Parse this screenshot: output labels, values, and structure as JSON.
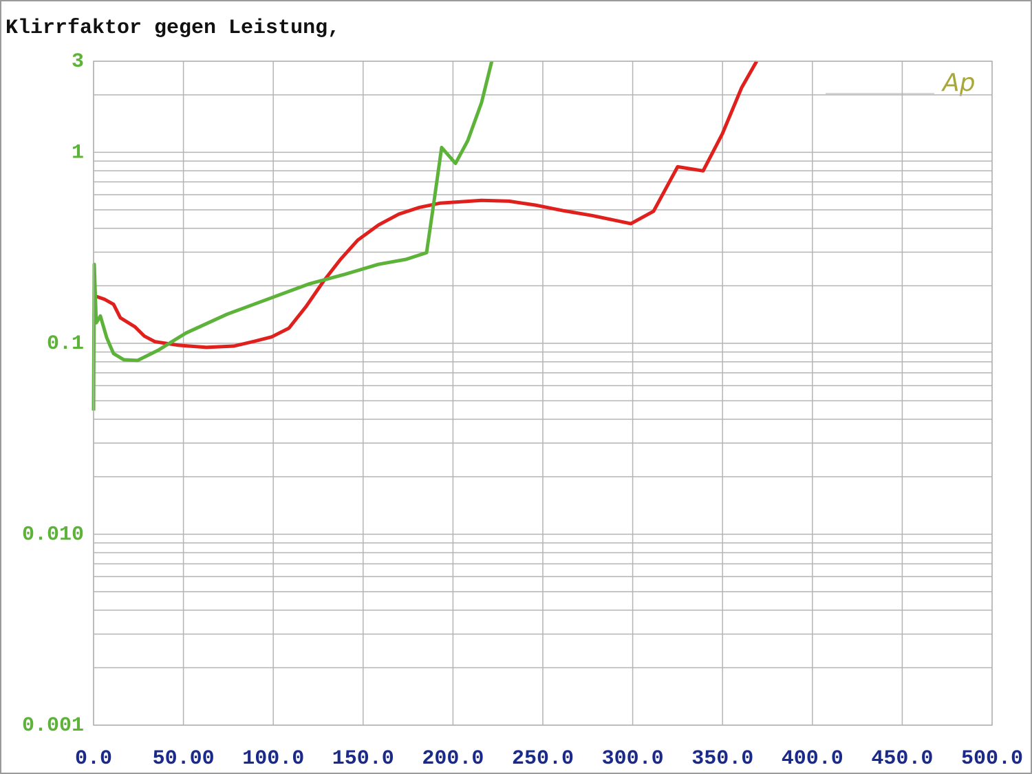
{
  "chart_data": {
    "type": "line",
    "title": "Klirrfaktor gegen Leistung,",
    "logo": "Ap",
    "y_scale": "log",
    "grid": true,
    "minor_grid": true,
    "xlim": [
      0,
      500
    ],
    "ylim": [
      0.001,
      3
    ],
    "xticks": [
      {
        "value": 0,
        "label": "0.0"
      },
      {
        "value": 50,
        "label": "50.00"
      },
      {
        "value": 100,
        "label": "100.0"
      },
      {
        "value": 150,
        "label": "150.0"
      },
      {
        "value": 200,
        "label": "200.0"
      },
      {
        "value": 250,
        "label": "250.0"
      },
      {
        "value": 300,
        "label": "300.0"
      },
      {
        "value": 350,
        "label": "350.0"
      },
      {
        "value": 400,
        "label": "400.0"
      },
      {
        "value": 450,
        "label": "450.0"
      },
      {
        "value": 500,
        "label": "500.0"
      }
    ],
    "yticks": [
      0.001,
      {
        "value": 0.01,
        "label": "0.010"
      },
      0.1,
      1,
      3
    ],
    "series": [
      {
        "color": "#e0201c",
        "x": [
          1.5,
          6.1,
          11.1,
          14.9,
          23.0,
          28.3,
          34.1,
          47.5,
          62.8,
          78.1,
          89.6,
          99.1,
          108.7,
          118.3,
          127.9,
          137.4,
          147.0,
          158.5,
          170.0,
          181.4,
          192.9,
          215.9,
          231.2,
          246.5,
          261.8,
          277.2,
          299.0,
          311.6,
          325.0,
          339.2,
          349.9,
          360.6,
          369.0
        ],
        "values": [
          0.176,
          0.17,
          0.16,
          0.136,
          0.122,
          0.109,
          0.102,
          0.0976,
          0.0952,
          0.0967,
          0.1025,
          0.108,
          0.12,
          0.156,
          0.211,
          0.275,
          0.347,
          0.416,
          0.475,
          0.515,
          0.542,
          0.56,
          0.555,
          0.528,
          0.494,
          0.467,
          0.423,
          0.491,
          0.84,
          0.8,
          1.25,
          2.18,
          3.0
        ]
      },
      {
        "color": "#5db33a",
        "x": [
          0,
          0.4,
          1.5,
          3.8,
          7.3,
          11.1,
          16.8,
          24.5,
          36.0,
          51.3,
          74.3,
          101.1,
          120.2,
          139.3,
          158.5,
          173.8,
          185.3,
          189.1,
          193.7,
          201.4,
          208.2,
          215.9,
          221.6
        ],
        "values": [
          0.0444,
          0.259,
          0.128,
          0.139,
          0.107,
          0.0883,
          0.082,
          0.0813,
          0.092,
          0.113,
          0.142,
          0.176,
          0.205,
          0.229,
          0.259,
          0.275,
          0.298,
          0.524,
          1.06,
          0.875,
          1.15,
          1.82,
          3.0
        ]
      }
    ]
  }
}
